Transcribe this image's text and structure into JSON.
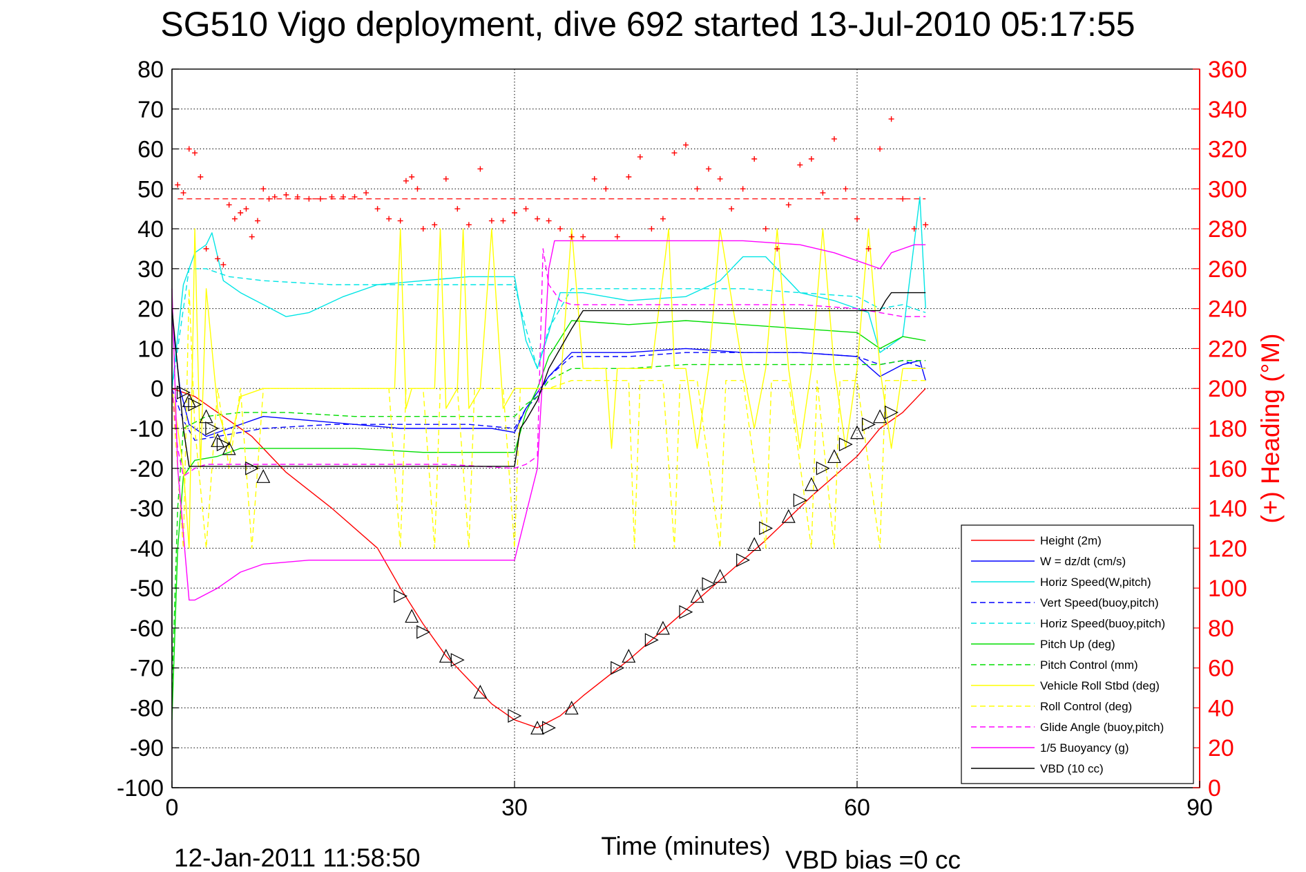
{
  "chart_data": {
    "type": "line",
    "title": "SG510 Vigo deployment, dive 692 started 13-Jul-2010 05:17:55",
    "xlabel": "Time (minutes)",
    "ylabel_right": "(+) Heading (°M)",
    "footer_left": "12-Jan-2011 11:58:50",
    "footer_right": "VBD bias =0 cc",
    "xlim": [
      0,
      90
    ],
    "ylim": [
      -100,
      80
    ],
    "ylim_right": [
      0,
      360
    ],
    "xticks": [
      0,
      30,
      60,
      90
    ],
    "yticks": [
      80,
      70,
      60,
      50,
      40,
      30,
      20,
      10,
      0,
      -10,
      -20,
      -30,
      -40,
      -50,
      -60,
      -70,
      -80,
      -90,
      -100
    ],
    "yticks_right": [
      360,
      340,
      320,
      300,
      280,
      260,
      240,
      220,
      200,
      180,
      160,
      140,
      120,
      100,
      80,
      60,
      40,
      20,
      0
    ],
    "grid": true,
    "legend_position": "bottom-right",
    "colors": {
      "red": "#ff0000",
      "blue": "#0000ff",
      "cyan": "#00e5e5",
      "green": "#00dd00",
      "yellow": "#ffff00",
      "magenta": "#ff00ff",
      "black": "#000000",
      "grid": "#000000"
    },
    "series": [
      {
        "name": "Height (2m)",
        "color": "#ff0000",
        "style": "solid",
        "x": [
          0,
          2,
          4,
          7,
          10,
          14,
          18,
          20,
          22,
          24,
          26,
          28,
          30,
          32,
          34,
          36,
          40,
          44,
          48,
          52,
          56,
          60,
          62,
          64,
          66
        ],
        "y": [
          0,
          -2,
          -6,
          -12,
          -21,
          -30,
          -40,
          -50,
          -59,
          -67,
          -73,
          -79,
          -83,
          -85,
          -82,
          -77,
          -68,
          -58,
          -48,
          -38,
          -27,
          -17,
          -10,
          -6,
          0
        ]
      },
      {
        "name": "W = dz/dt (cm/s)",
        "color": "#0000ff",
        "style": "solid",
        "x": [
          0,
          0.7,
          1.5,
          3,
          5,
          8,
          12,
          16,
          20,
          24,
          28,
          30,
          31,
          32,
          33,
          35,
          40,
          45,
          50,
          55,
          60,
          62,
          64,
          65.5,
          66
        ],
        "y": [
          18,
          0,
          -9,
          -12,
          -10,
          -7,
          -8,
          -9,
          -10,
          -10,
          -10,
          -11,
          -5,
          -1,
          3,
          9,
          9,
          10,
          9,
          9,
          8,
          3,
          6,
          7,
          2
        ]
      },
      {
        "name": "Horiz Speed(W,pitch)",
        "color": "#00e5e5",
        "style": "solid",
        "x": [
          0,
          1,
          2,
          3,
          3.5,
          4.5,
          6,
          8,
          10,
          12,
          15,
          18,
          22,
          26,
          30,
          31,
          32,
          33,
          34,
          36,
          40,
          45,
          48,
          50,
          52,
          55,
          58,
          61,
          62,
          64,
          65.5,
          66
        ],
        "y": [
          0,
          26,
          34,
          36,
          39,
          27,
          24,
          21,
          18,
          19,
          23,
          26,
          27,
          28,
          28,
          12,
          5,
          14,
          24,
          24,
          22,
          23,
          27,
          33,
          33,
          24,
          22,
          19,
          9,
          13,
          48,
          20
        ]
      },
      {
        "name": "Vert Speed(buoy,pitch)",
        "color": "#0000ff",
        "style": "dashed",
        "x": [
          0,
          1,
          2,
          4,
          8,
          14,
          20,
          26,
          30,
          31,
          32,
          33,
          35,
          40,
          45,
          50,
          55,
          60,
          62,
          64,
          66
        ],
        "y": [
          0,
          -8,
          -13,
          -12,
          -10,
          -9,
          -9,
          -9,
          -10,
          -5,
          -2,
          3,
          8,
          8,
          9,
          9,
          9,
          8,
          6,
          7,
          5
        ]
      },
      {
        "name": "Horiz Speed(buoy,pitch)",
        "color": "#00e5e5",
        "style": "dashed",
        "x": [
          0,
          1.5,
          3,
          5,
          8,
          14,
          20,
          26,
          30,
          31,
          32,
          33,
          35,
          40,
          45,
          50,
          55,
          60,
          62,
          64,
          66
        ],
        "y": [
          0,
          30,
          30,
          28,
          27,
          26,
          26,
          26,
          26,
          15,
          5,
          15,
          25,
          25,
          25,
          25,
          24,
          23,
          20,
          21,
          19
        ]
      },
      {
        "name": "Pitch Up (deg)",
        "color": "#00dd00",
        "style": "solid",
        "x": [
          0,
          0.5,
          1,
          2,
          4,
          6,
          10,
          16,
          22,
          28,
          30,
          31,
          32,
          33,
          35,
          40,
          45,
          50,
          55,
          60,
          62,
          64,
          66
        ],
        "y": [
          -83,
          -40,
          -22,
          -18,
          -17,
          -15,
          -15,
          -15,
          -16,
          -16,
          -16,
          -6,
          0,
          8,
          17,
          16,
          17,
          16,
          15,
          14,
          10,
          13,
          12
        ]
      },
      {
        "name": "Pitch Control (mm)",
        "color": "#00dd00",
        "style": "dashed",
        "x": [
          0,
          0.5,
          1,
          3,
          6,
          10,
          16,
          22,
          28,
          30,
          31,
          32,
          33,
          35,
          40,
          45,
          50,
          55,
          60,
          62,
          64,
          66
        ],
        "y": [
          -75,
          -30,
          -10,
          -7,
          -6,
          -6,
          -7,
          -7,
          -7,
          -7,
          -4,
          -2,
          2,
          5,
          5,
          6,
          6,
          6,
          6,
          6,
          7,
          7
        ]
      },
      {
        "name": "Vehicle Roll Stbd (deg)",
        "color": "#ffff00",
        "style": "solid",
        "x": [
          0,
          1,
          1.5,
          2,
          2.5,
          3,
          4,
          5,
          6,
          8,
          10,
          15,
          19.5,
          20,
          20.5,
          21,
          23,
          23.5,
          24,
          25,
          25.5,
          26,
          27,
          28,
          29,
          30,
          31,
          32,
          33,
          34,
          35,
          36,
          38,
          38.5,
          39,
          40,
          42,
          43.5,
          44,
          45,
          46,
          47,
          48,
          50,
          51,
          52,
          53,
          54,
          55,
          56,
          57,
          58,
          59,
          60,
          61,
          62,
          63,
          64,
          65,
          66
        ],
        "y": [
          0,
          -20,
          -40,
          40,
          -20,
          25,
          -5,
          -15,
          -2,
          0,
          0,
          0,
          0,
          40,
          -5,
          0,
          0,
          40,
          -5,
          0,
          40,
          -5,
          0,
          40,
          -5,
          0,
          0,
          0,
          0,
          0,
          40,
          5,
          5,
          -15,
          5,
          5,
          5,
          40,
          5,
          5,
          -15,
          5,
          40,
          5,
          -10,
          5,
          40,
          5,
          -15,
          5,
          40,
          5,
          -15,
          5,
          40,
          5,
          -15,
          5,
          5,
          5
        ]
      },
      {
        "name": "Roll Control (deg)",
        "color": "#ffff00",
        "style": "dashed",
        "x": [
          0,
          1,
          1.5,
          2,
          3,
          4,
          5,
          6,
          7,
          8,
          10,
          15,
          19,
          20,
          20.5,
          22,
          23,
          23.5,
          25,
          26,
          26.5,
          29,
          30,
          30.5,
          31,
          33,
          35,
          38,
          40,
          40.5,
          41,
          43,
          44,
          44.5,
          46,
          48,
          48.5,
          50,
          52,
          52.5,
          54,
          56,
          56.5,
          58,
          58.5,
          60,
          62,
          62.5,
          63,
          66
        ],
        "y": [
          0,
          -40,
          25,
          -10,
          -40,
          0,
          -20,
          0,
          -40,
          0,
          0,
          0,
          0,
          -40,
          0,
          0,
          -40,
          0,
          0,
          -40,
          0,
          0,
          -40,
          0,
          0,
          0,
          2,
          2,
          2,
          -40,
          2,
          2,
          -40,
          2,
          2,
          -40,
          2,
          2,
          -40,
          2,
          2,
          -40,
          2,
          -40,
          2,
          2,
          -40,
          2,
          2,
          2
        ]
      },
      {
        "name": "Glide Angle (buoy,pitch)",
        "color": "#ff00ff",
        "style": "dashed",
        "x": [
          0,
          0.5,
          1,
          2,
          3,
          5,
          8,
          12,
          18,
          24,
          30,
          31,
          32,
          32.5,
          33,
          34,
          35,
          40,
          45,
          50,
          55,
          60,
          62,
          64,
          66
        ],
        "y": [
          0,
          -15,
          -22,
          -20,
          -19,
          -19,
          -19,
          -19,
          -19,
          -19,
          -20,
          -19,
          -17,
          35,
          26,
          22,
          21,
          21,
          21,
          21,
          21,
          20,
          19,
          18,
          18
        ]
      },
      {
        "name": "1/5 Buoyancy (g)",
        "color": "#ff00ff",
        "style": "solid",
        "x": [
          0,
          0.5,
          1.5,
          2,
          4,
          6,
          8,
          12,
          18,
          24,
          30,
          32,
          33,
          33.5,
          35,
          36,
          40,
          45,
          50,
          55,
          58,
          60,
          61,
          62,
          63,
          64,
          65,
          66
        ],
        "y": [
          25,
          -20,
          -53,
          -53,
          -50,
          -46,
          -44,
          -43,
          -43,
          -43,
          -43,
          -20,
          30,
          37,
          37,
          37,
          37,
          37,
          37,
          36,
          34,
          32,
          31,
          30,
          34,
          35,
          36,
          36
        ]
      },
      {
        "name": "VBD (10 cc)",
        "color": "#000000",
        "style": "solid",
        "x": [
          0,
          0.5,
          1,
          1.5,
          10,
          20,
          30,
          30.5,
          31,
          32,
          33,
          35,
          36,
          40,
          50,
          60,
          62,
          62.5,
          63,
          65,
          66
        ],
        "y": [
          20,
          5,
          -10,
          -19.5,
          -19.5,
          -19.5,
          -19.5,
          -10,
          -8,
          -3,
          5,
          15,
          19.5,
          19.5,
          19.5,
          19.5,
          19.5,
          22,
          24,
          24,
          24
        ]
      }
    ],
    "markers": {
      "triangles": {
        "color": "#000000",
        "x": [
          1,
          1.5,
          2,
          3,
          3.5,
          4,
          4.5,
          5,
          7,
          8,
          20,
          21,
          22,
          24,
          25,
          27,
          30,
          32,
          33,
          35,
          39,
          40,
          42,
          43,
          45,
          46,
          47,
          48,
          50,
          51,
          52,
          54,
          55,
          56,
          57,
          58,
          59,
          60,
          61,
          62,
          63
        ],
        "y": [
          -1,
          -3,
          -4,
          -7,
          -10,
          -13,
          -14,
          -15,
          -20,
          -22,
          -52,
          -57,
          -61,
          -67,
          -68,
          -76,
          -82,
          -85,
          -85,
          -80,
          -70,
          -67,
          -63,
          -60,
          -56,
          -52,
          -49,
          -47,
          -43,
          -39,
          -35,
          -32,
          -28,
          -24,
          -20,
          -17,
          -14,
          -11,
          -9,
          -7,
          -6
        ]
      },
      "heading": {
        "name": "(+) Heading (°M)",
        "color": "#ff0000",
        "axis": "right",
        "mean": 295,
        "x": [
          0.5,
          1,
          1.5,
          2,
          2.5,
          3,
          4,
          4.5,
          5,
          5.5,
          6,
          6.5,
          7,
          7.5,
          8,
          8.5,
          9,
          10,
          11,
          12,
          13,
          14,
          15,
          16,
          17,
          18,
          19,
          20,
          20.5,
          21,
          21.5,
          22,
          23,
          24,
          25,
          26,
          27,
          28,
          29,
          30,
          31,
          32,
          33,
          34,
          35,
          36,
          37,
          38,
          39,
          40,
          41,
          42,
          43,
          44,
          45,
          46,
          47,
          48,
          49,
          50,
          51,
          52,
          53,
          54,
          55,
          56,
          57,
          58,
          59,
          60,
          61,
          62,
          63,
          64,
          65,
          66
        ],
        "y": [
          302,
          298,
          320,
          318,
          306,
          270,
          265,
          262,
          292,
          285,
          288,
          290,
          276,
          284,
          300,
          295,
          296,
          297,
          296,
          295,
          295,
          296,
          296,
          296,
          298,
          290,
          285,
          284,
          304,
          306,
          300,
          280,
          282,
          305,
          290,
          282,
          310,
          284,
          284,
          288,
          290,
          285,
          284,
          280,
          276,
          276,
          305,
          300,
          276,
          306,
          316,
          280,
          285,
          318,
          322,
          300,
          310,
          305,
          290,
          300,
          315,
          280,
          270,
          292,
          312,
          315,
          298,
          325,
          300,
          285,
          270,
          320,
          335,
          295,
          280,
          282
        ]
      }
    }
  }
}
